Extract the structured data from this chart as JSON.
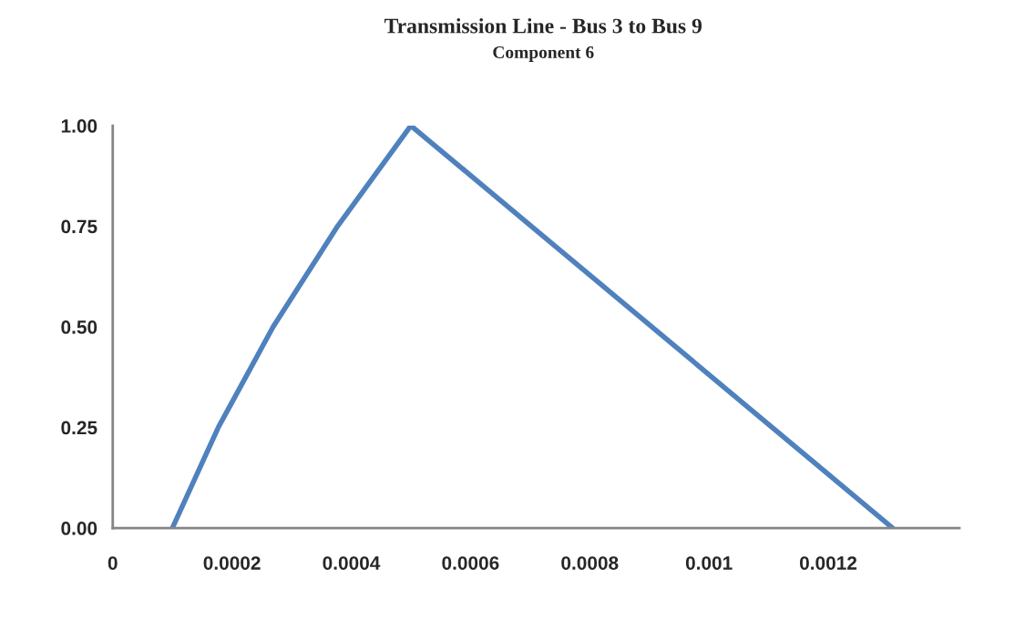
{
  "chart_data": {
    "type": "line",
    "title": "Transmission Line - Bus 3 to Bus 9",
    "subtitle": "Component 6",
    "series": [
      {
        "color": "#4f81bd",
        "x": [
          0.0001,
          0.000177,
          0.000269,
          0.000377,
          0.0005,
          0.001308
        ],
        "values": [
          0,
          0.25,
          0.5,
          0.75,
          1.0,
          0
        ]
      }
    ],
    "xlim": [
      0,
      0.00142
    ],
    "xticks": [
      0,
      0.0002,
      0.0004,
      0.0006,
      0.0008,
      0.001,
      0.0012
    ],
    "ylim": [
      0,
      1.0
    ],
    "yticks": [
      {
        "value": 0,
        "label": "0.00"
      },
      {
        "value": 0.25,
        "label": "0.25"
      },
      {
        "value": 0.5,
        "label": "0.50"
      },
      {
        "value": 0.75,
        "label": "0.75"
      },
      {
        "value": 1.0,
        "label": "1.00"
      }
    ]
  }
}
